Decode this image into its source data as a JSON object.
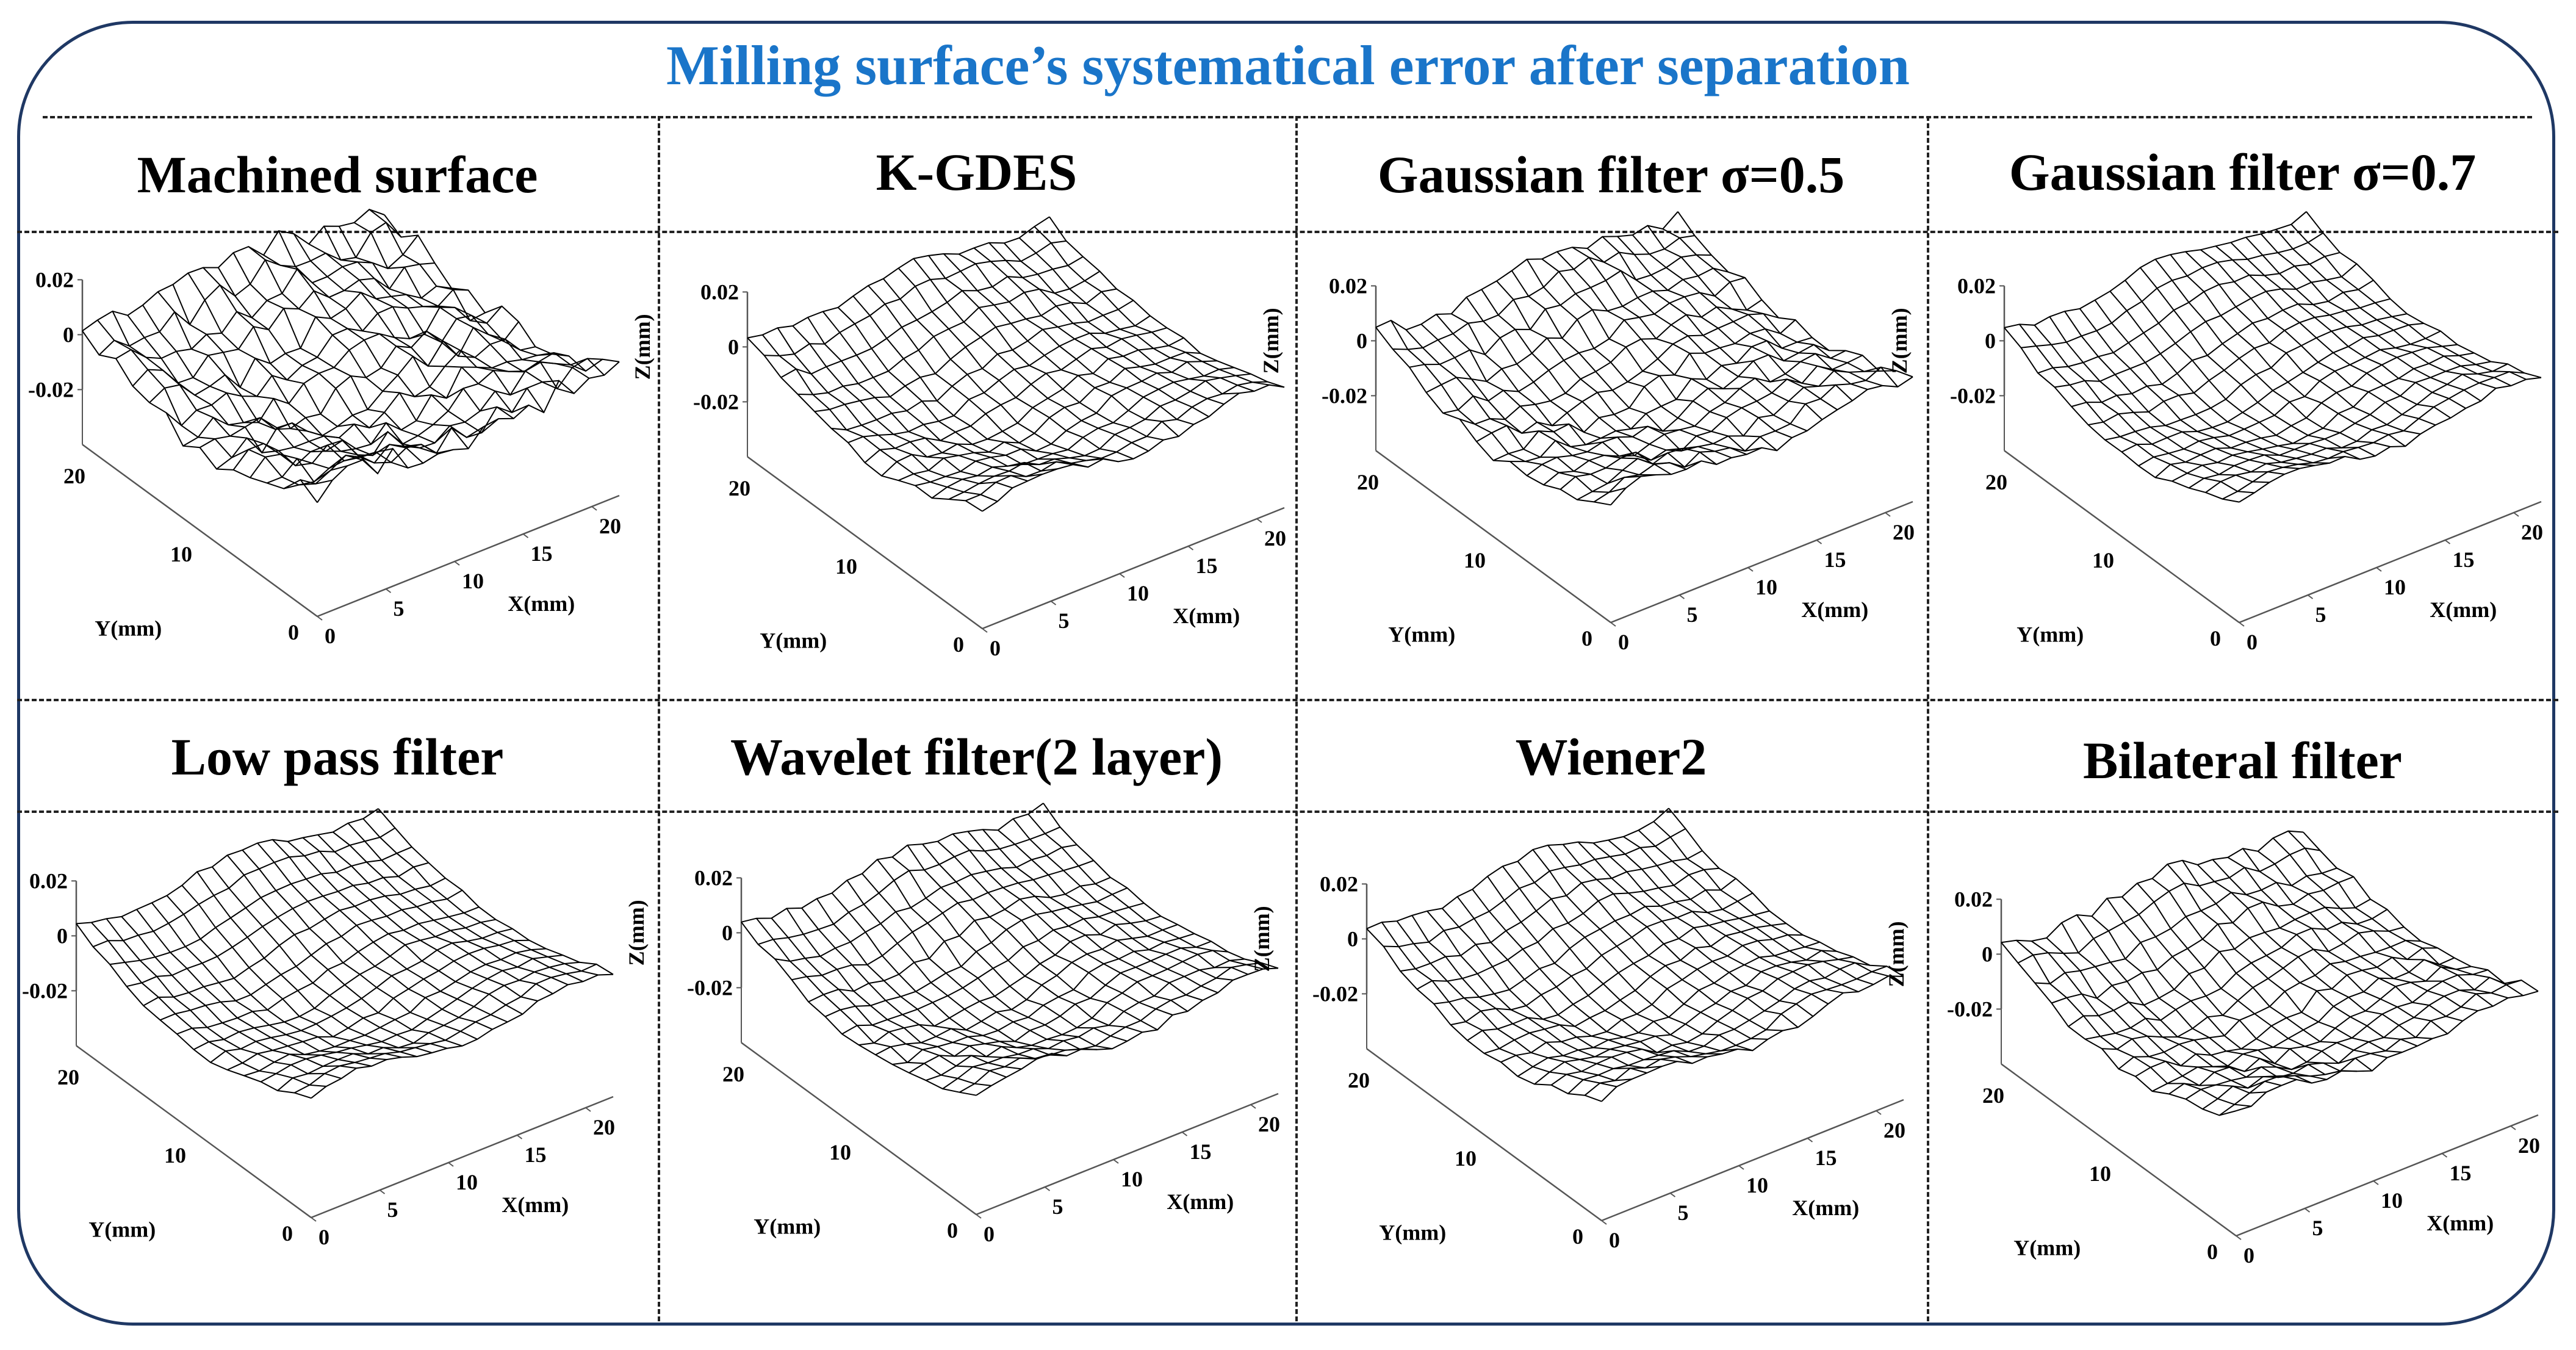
{
  "title": "Milling surface’s systematical error after separation",
  "colors": {
    "title": "#1a75c9",
    "frame": "#1f3864",
    "mesh": "#000000",
    "axis": "#555555"
  },
  "panels": [
    {
      "title": "Machined surface"
    },
    {
      "title": "K-GDES"
    },
    {
      "title": "Gaussian filter σ=0.5"
    },
    {
      "title": "Gaussian filter σ=0.7"
    },
    {
      "title": "Low pass filter"
    },
    {
      "title": "Wavelet filter(2 layer)"
    },
    {
      "title": "Wiener2"
    },
    {
      "title": "Bilateral filter"
    }
  ],
  "chart_data": [
    {
      "type": "surface",
      "title": "Machined surface",
      "xlabel": "X(mm)",
      "ylabel": "Y(mm)",
      "zlabel": "Z(mm)",
      "xticks": [
        "0",
        "5",
        "10",
        "15",
        "20"
      ],
      "yticks": [
        "0",
        "10",
        "20"
      ],
      "zticks": [
        "-0.02",
        "0",
        "0.02"
      ],
      "xlim": [
        0,
        22
      ],
      "ylim": [
        0,
        22
      ],
      "zlim": [
        -0.02,
        0.02
      ],
      "roughness": 1.0
    },
    {
      "type": "surface",
      "title": "K-GDES",
      "xlabel": "X(mm)",
      "ylabel": "Y(mm)",
      "zlabel": "Z(mm)",
      "xticks": [
        "0",
        "5",
        "10",
        "15",
        "20"
      ],
      "yticks": [
        "0",
        "10",
        "20"
      ],
      "zticks": [
        "-0.02",
        "0",
        "0.02"
      ],
      "xlim": [
        0,
        22
      ],
      "ylim": [
        0,
        22
      ],
      "zlim": [
        -0.02,
        0.02
      ],
      "roughness": 0.35
    },
    {
      "type": "surface",
      "title": "Gaussian filter σ=0.5",
      "xlabel": "X(mm)",
      "ylabel": "Y(mm)",
      "zlabel": "Z(mm)",
      "xticks": [
        "0",
        "5",
        "10",
        "15",
        "20"
      ],
      "yticks": [
        "0",
        "10",
        "20"
      ],
      "zticks": [
        "-0.02",
        "0",
        "0.02"
      ],
      "xlim": [
        0,
        22
      ],
      "ylim": [
        0,
        22
      ],
      "zlim": [
        -0.02,
        0.02
      ],
      "roughness": 0.6
    },
    {
      "type": "surface",
      "title": "Gaussian filter σ=0.7",
      "xlabel": "X(mm)",
      "ylabel": "Y(mm)",
      "zlabel": "Z(mm)",
      "xticks": [
        "0",
        "5",
        "10",
        "15",
        "20"
      ],
      "yticks": [
        "0",
        "10",
        "20"
      ],
      "zticks": [
        "-0.02",
        "0",
        "0.02"
      ],
      "xlim": [
        0,
        22
      ],
      "ylim": [
        0,
        22
      ],
      "zlim": [
        -0.02,
        0.02
      ],
      "roughness": 0.25
    },
    {
      "type": "surface",
      "title": "Low pass filter",
      "xlabel": "X(mm)",
      "ylabel": "Y(mm)",
      "zlabel": "Z(mm)",
      "xticks": [
        "0",
        "5",
        "10",
        "15",
        "20"
      ],
      "yticks": [
        "0",
        "10",
        "20"
      ],
      "zticks": [
        "-0.02",
        "0",
        "0.02"
      ],
      "xlim": [
        0,
        22
      ],
      "ylim": [
        0,
        22
      ],
      "zlim": [
        -0.02,
        0.02
      ],
      "roughness": 0.2
    },
    {
      "type": "surface",
      "title": "Wavelet filter(2 layer)",
      "xlabel": "X(mm)",
      "ylabel": "Y(mm)",
      "zlabel": "Z(mm)",
      "xticks": [
        "0",
        "5",
        "10",
        "15",
        "20"
      ],
      "yticks": [
        "0",
        "10",
        "20"
      ],
      "zticks": [
        "-0.02",
        "0",
        "0.02"
      ],
      "xlim": [
        0,
        22
      ],
      "ylim": [
        0,
        22
      ],
      "zlim": [
        -0.02,
        0.02
      ],
      "roughness": 0.3
    },
    {
      "type": "surface",
      "title": "Wiener2",
      "xlabel": "X(mm)",
      "ylabel": "Y(mm)",
      "zlabel": "Z(mm)",
      "xticks": [
        "0",
        "5",
        "10",
        "15",
        "20"
      ],
      "yticks": [
        "0",
        "10",
        "20"
      ],
      "zticks": [
        "-0.02",
        "0",
        "0.02"
      ],
      "xlim": [
        0,
        22
      ],
      "ylim": [
        0,
        22
      ],
      "zlim": [
        -0.02,
        0.02
      ],
      "roughness": 0.3
    },
    {
      "type": "surface",
      "title": "Bilateral filter",
      "xlabel": "X(mm)",
      "ylabel": "Y(mm)",
      "zlabel": "Z(mm)",
      "xticks": [
        "0",
        "5",
        "10",
        "15",
        "20"
      ],
      "yticks": [
        "0",
        "10",
        "20"
      ],
      "zticks": [
        "-0.02",
        "0",
        "0.02"
      ],
      "xlim": [
        0,
        22
      ],
      "ylim": [
        0,
        22
      ],
      "zlim": [
        -0.02,
        0.02
      ],
      "roughness": 0.45
    }
  ]
}
